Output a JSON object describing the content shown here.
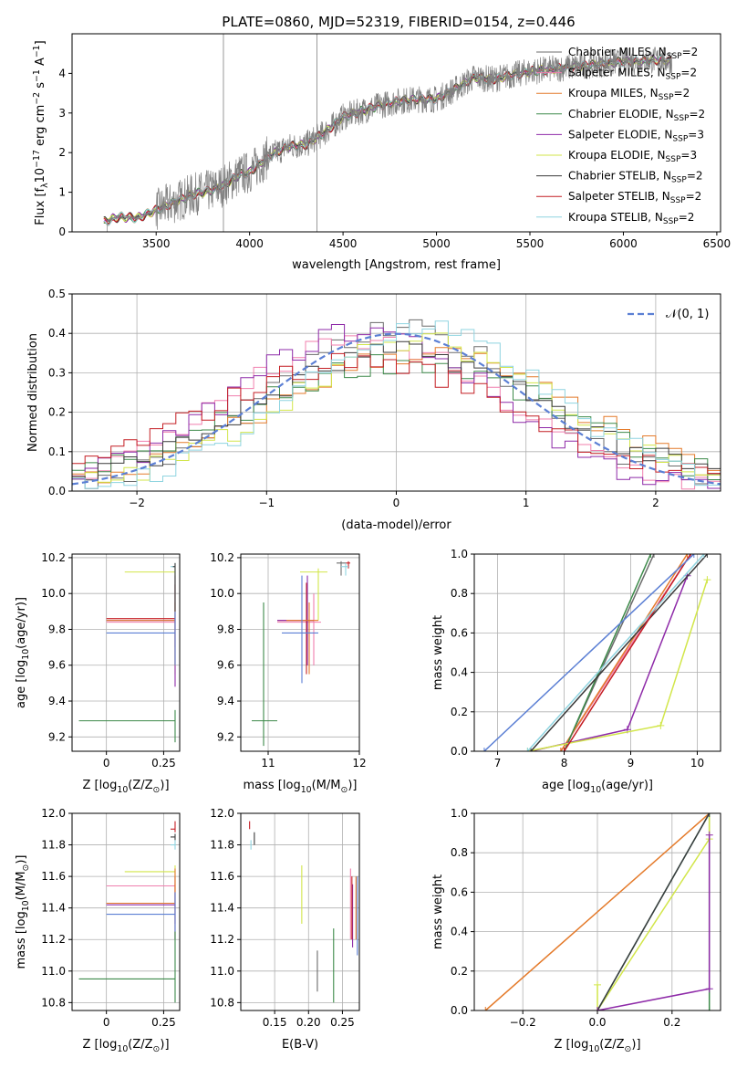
{
  "figure": {
    "title": "PLATE=0860, MJD=52319, FIBERID=0154, z=0.446"
  },
  "models": [
    {
      "key": "chabrier_miles",
      "label": "Chabrier MILES, N",
      "sub": "SSP",
      "suffix": "=2",
      "color": "#6b6b6b"
    },
    {
      "key": "salpeter_miles",
      "label": "Salpeter MILES, N",
      "sub": "SSP",
      "suffix": "=2",
      "color": "#f07fae"
    },
    {
      "key": "kroupa_miles",
      "label": "Kroupa MILES, N",
      "sub": "SSP",
      "suffix": "=2",
      "color": "#e47a2a"
    },
    {
      "key": "chabrier_elodie",
      "label": "Chabrier ELODIE, N",
      "sub": "SSP",
      "suffix": "=2",
      "color": "#3d8a4a"
    },
    {
      "key": "salpeter_elodie",
      "label": "Salpeter ELODIE, N",
      "sub": "SSP",
      "suffix": "=3",
      "color": "#8e2aa8"
    },
    {
      "key": "kroupa_elodie",
      "label": "Kroupa ELODIE, N",
      "sub": "SSP",
      "suffix": "=3",
      "color": "#d2e64a"
    },
    {
      "key": "chabrier_stelib",
      "label": "Chabrier STELIB, N",
      "sub": "SSP",
      "suffix": "=2",
      "color": "#3a3a3a"
    },
    {
      "key": "salpeter_stelib",
      "label": "Salpeter STELIB, N",
      "sub": "SSP",
      "suffix": "=2",
      "color": "#c41e24"
    },
    {
      "key": "kroupa_stelib",
      "label": "Kroupa STELIB, N",
      "sub": "SSP",
      "suffix": "=2",
      "color": "#8fd4e0"
    }
  ],
  "chart_data": [
    {
      "id": "spectrum",
      "type": "line",
      "xlabel": "wavelength [Angstrom, rest frame]",
      "ylabel": "Flux [f",
      "ylabel_parts": {
        "pre": "Flux [f",
        "sub": "λ",
        "mid": "10",
        "sup1": "−17",
        "mid2": " erg cm",
        "sup2": "−2",
        "mid3": " s",
        "sup3": "−1",
        "mid4": " A",
        "sup4": "−1",
        "post": "]"
      },
      "xlim": [
        3050,
        6520
      ],
      "ylim": [
        0,
        5.0
      ],
      "xticks": [
        3500,
        4000,
        4500,
        5000,
        5500,
        6000,
        6500
      ],
      "yticks": [
        0,
        1,
        2,
        3,
        4
      ],
      "data_color": "#808080",
      "data_start": 3220,
      "data_end": 6260,
      "continuum": [
        [
          3220,
          0.25
        ],
        [
          3300,
          0.38
        ],
        [
          3400,
          0.35
        ],
        [
          3500,
          0.55
        ],
        [
          3600,
          0.75
        ],
        [
          3700,
          0.95
        ],
        [
          3800,
          1.05
        ],
        [
          3850,
          1.15
        ],
        [
          3900,
          1.3
        ],
        [
          3950,
          1.45
        ],
        [
          4000,
          1.5
        ],
        [
          4100,
          1.9
        ],
        [
          4200,
          2.15
        ],
        [
          4300,
          2.2
        ],
        [
          4400,
          2.5
        ],
        [
          4500,
          2.9
        ],
        [
          4600,
          3.05
        ],
        [
          4700,
          3.2
        ],
        [
          4800,
          3.3
        ],
        [
          4900,
          3.35
        ],
        [
          5000,
          3.35
        ],
        [
          5100,
          3.6
        ],
        [
          5200,
          3.9
        ],
        [
          5300,
          3.85
        ],
        [
          5400,
          3.95
        ],
        [
          5500,
          4.05
        ],
        [
          5600,
          4.1
        ],
        [
          5700,
          4.15
        ],
        [
          5800,
          4.2
        ],
        [
          5900,
          4.25
        ],
        [
          6000,
          4.3
        ],
        [
          6100,
          4.3
        ],
        [
          6200,
          4.35
        ],
        [
          6260,
          4.3
        ]
      ],
      "spikes": [
        3860,
        4360
      ]
    },
    {
      "id": "residuals",
      "type": "histogram",
      "xlabel": "(data-model)/error",
      "ylabel": "Normed distribution",
      "xlim": [
        -2.5,
        2.5
      ],
      "ylim": [
        0,
        0.5
      ],
      "xticks": [
        -2,
        -1,
        0,
        1,
        2
      ],
      "yticks": [
        0.0,
        0.1,
        0.2,
        0.3,
        0.4,
        0.5
      ],
      "legend": "𝒩(0, 1)",
      "normal_color": "#5b7fd4",
      "bin_width": 0.1
    },
    {
      "id": "age_vs_Z",
      "type": "scatter",
      "xlabel": "Z [log",
      "xlabel_parts": {
        "pre": "Z [log",
        "sub": "10",
        "post": "(Z/Z",
        "sub2": "⊙",
        "post2": ")]"
      },
      "ylabel_parts": {
        "pre": "age  [log",
        "sub": "10",
        "post": "(age/yr)]"
      },
      "xlim": [
        -0.15,
        0.32
      ],
      "ylim": [
        9.12,
        10.22
      ],
      "xticks": [
        0.0,
        0.25
      ],
      "yticks": [
        9.2,
        9.4,
        9.6,
        9.8,
        10.0,
        10.2
      ]
    },
    {
      "id": "age_vs_mass",
      "type": "scatter",
      "xlabel_parts": {
        "pre": "mass [log",
        "sub": "10",
        "post": "(M/M",
        "sub2": "⊙",
        "post2": ")]"
      },
      "xlim": [
        10.7,
        12.0
      ],
      "ylim": [
        9.12,
        10.22
      ],
      "xticks": [
        11,
        12
      ],
      "yticks": [
        9.2,
        9.4,
        9.6,
        9.8,
        10.0,
        10.2
      ]
    },
    {
      "id": "cum_age",
      "type": "line",
      "xlabel_parts": {
        "pre": "age  [log",
        "sub": "10",
        "post": "(age/yr)]"
      },
      "ylabel": "mass weight",
      "xlim": [
        6.65,
        10.35
      ],
      "ylim": [
        0,
        1.0
      ],
      "xticks": [
        7,
        8,
        9,
        10
      ],
      "yticks": [
        0.0,
        0.2,
        0.4,
        0.6,
        0.8,
        1.0
      ],
      "series": [
        {
          "model": "chabrier_miles",
          "x": [
            8.0,
            9.35
          ],
          "y": [
            0,
            1.0
          ]
        },
        {
          "model": "salpeter_miles",
          "x": [
            7.95,
            9.9
          ],
          "y": [
            0,
            1.0
          ]
        },
        {
          "model": "kroupa_miles",
          "x": [
            7.95,
            9.85
          ],
          "y": [
            0,
            1.0
          ]
        },
        {
          "model": "chabrier_elodie",
          "x": [
            8.0,
            9.3
          ],
          "y": [
            0,
            1.0
          ]
        },
        {
          "model": "salpeter_elodie",
          "x": [
            7.5,
            8.95,
            9.85
          ],
          "y": [
            0,
            0.11,
            0.89
          ]
        },
        {
          "model": "kroupa_elodie",
          "x": [
            7.45,
            9.45,
            10.15
          ],
          "y": [
            0,
            0.13,
            0.87
          ]
        },
        {
          "model": "chabrier_stelib",
          "x": [
            7.5,
            10.15
          ],
          "y": [
            0,
            1.0
          ]
        },
        {
          "model": "salpeter_stelib",
          "x": [
            8.0,
            9.9
          ],
          "y": [
            0,
            1.0
          ]
        },
        {
          "model": "kroupa_stelib",
          "x": [
            7.45,
            10.1
          ],
          "y": [
            0,
            1.0
          ]
        },
        {
          "model": "blue",
          "x": [
            6.8,
            9.95
          ],
          "y": [
            0,
            1.0
          ]
        }
      ]
    },
    {
      "id": "mass_vs_Z",
      "type": "scatter",
      "xlabel_parts": {
        "pre": "Z [log",
        "sub": "10",
        "post": "(Z/Z",
        "sub2": "⊙",
        "post2": ")]"
      },
      "ylabel_parts": {
        "pre": "mass [log",
        "sub": "10",
        "post": "(M/M",
        "sub2": "⊙",
        "post2": ")]"
      },
      "xlim": [
        -0.15,
        0.32
      ],
      "ylim": [
        10.75,
        12.0
      ],
      "xticks": [
        0.0,
        0.25
      ],
      "yticks": [
        10.8,
        11.0,
        11.2,
        11.4,
        11.6,
        11.8,
        12.0
      ]
    },
    {
      "id": "mass_vs_ebv",
      "type": "scatter",
      "xlabel": "E(B-V)",
      "xlim": [
        0.1,
        0.275
      ],
      "ylim": [
        10.75,
        12.0
      ],
      "xticks": [
        0.15,
        0.2,
        0.25
      ],
      "xticklabels": [
        "0.15",
        "0.20",
        "0.25"
      ],
      "yticks": [
        10.8,
        11.0,
        11.2,
        11.4,
        11.6,
        11.8,
        12.0
      ]
    },
    {
      "id": "cum_Z",
      "type": "line",
      "xlabel_parts": {
        "pre": "Z [log",
        "sub": "10",
        "post": "(Z/Z",
        "sub2": "⊙",
        "post2": ")]"
      },
      "ylabel": "mass weight",
      "xlim": [
        -0.33,
        0.33
      ],
      "ylim": [
        0,
        1.0
      ],
      "xticks": [
        -0.2,
        0.0,
        0.2
      ],
      "xticklabels": [
        "−0.2",
        "0.0",
        "0.2"
      ],
      "yticks": [
        0.0,
        0.2,
        0.4,
        0.6,
        0.8,
        1.0
      ]
    }
  ]
}
